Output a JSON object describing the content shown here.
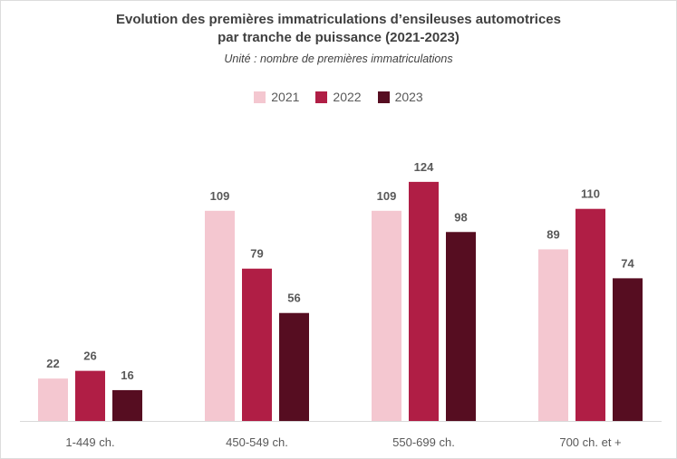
{
  "chart_data": {
    "type": "bar",
    "title_line1": "Evolution des premières immatriculations d’ensileuses automotrices",
    "title_line2": "par tranche de puissance (2021-2023)",
    "subtitle": "Unité : nombre de premières immatriculations",
    "categories": [
      "1-449 ch.",
      "450-549 ch.",
      "550-699 ch.",
      "700 ch. et +"
    ],
    "series": [
      {
        "name": "2021",
        "color": "#f4c7d0",
        "values": [
          22,
          109,
          109,
          89
        ]
      },
      {
        "name": "2022",
        "color": "#b01e45",
        "values": [
          26,
          79,
          124,
          110
        ]
      },
      {
        "name": "2023",
        "color": "#560d21",
        "values": [
          16,
          56,
          98,
          74
        ]
      }
    ],
    "ylim": [
      0,
      140
    ],
    "xlabel": "",
    "ylabel": "",
    "legend_position": "top",
    "grid": false
  }
}
